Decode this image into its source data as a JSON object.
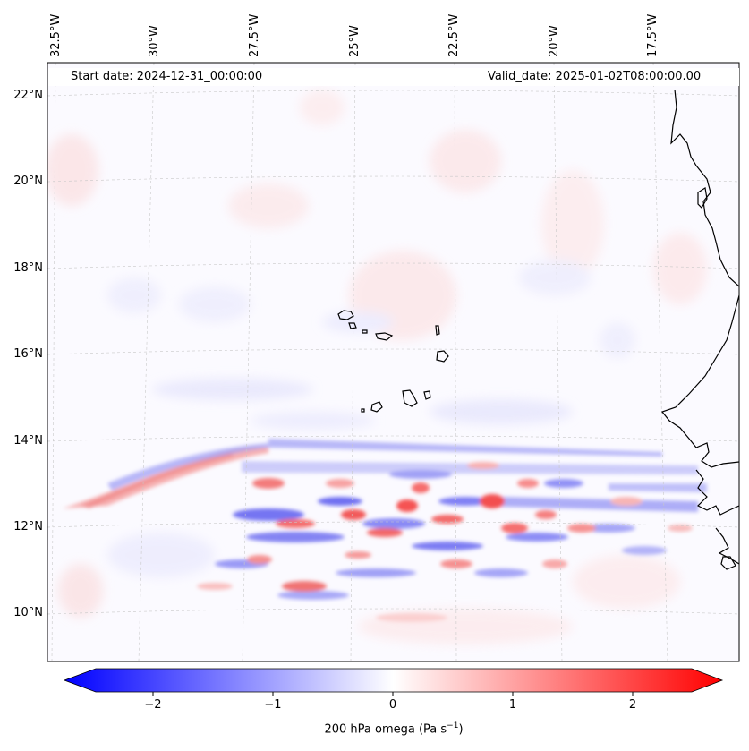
{
  "map": {
    "start_date": "Start date: 2024-12-31_00:00:00",
    "valid_date": "Valid_date: 2025-01-02T08:00:00.00",
    "lon_labels": [
      "32.5°W",
      "30°W",
      "27.5°W",
      "25°W",
      "22.5°W",
      "20°W",
      "17.5°W"
    ],
    "lat_labels": [
      "22°N",
      "20°N",
      "18°N",
      "16°N",
      "14°N",
      "12°N",
      "10°N"
    ],
    "colors": {
      "negative": "#0000ff",
      "neutral": "#ffffff",
      "positive": "#ff0000",
      "coast": "#000000"
    }
  },
  "colorbar": {
    "label_text": "200 hPa omega (Pa s",
    "label_exp": "−1",
    "label_close": ")",
    "ticks": [
      "−2",
      "−1",
      "0",
      "1",
      "2"
    ],
    "range": [
      -2.6,
      2.6
    ]
  }
}
